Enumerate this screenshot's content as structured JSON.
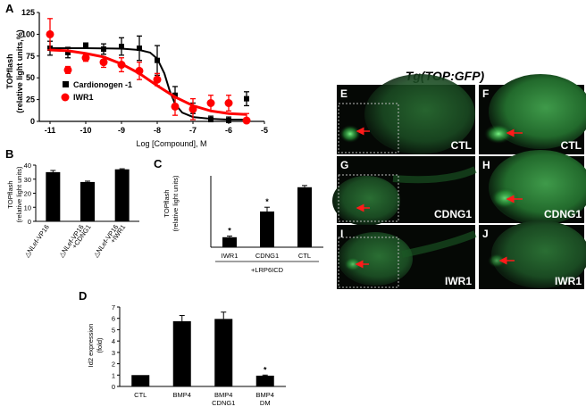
{
  "panels": {
    "A": {
      "letter": "A",
      "chart_data": {
        "type": "line",
        "xlabel": "Log [Compound], M",
        "ylabel_line1": "TOPflash",
        "ylabel_line2": "(relative light units,%)",
        "xlim": [
          -11.3,
          -5
        ],
        "ylim": [
          0,
          125
        ],
        "xticks": [
          "-11",
          "-10",
          "-9",
          "-8",
          "-7",
          "-6",
          "-5"
        ],
        "yticks": [
          "0",
          "25",
          "50",
          "75",
          "100",
          "125"
        ],
        "series": [
          {
            "name": "Cardionogen -1",
            "color": "#000000",
            "marker": "square",
            "points": [
              [
                -11,
                84,
                8
              ],
              [
                -10.5,
                79,
                6
              ],
              [
                -10,
                87,
                3
              ],
              [
                -9.5,
                83,
                6
              ],
              [
                -9,
                86,
                10
              ],
              [
                -8.5,
                84,
                14
              ],
              [
                -8,
                70,
                17
              ],
              [
                -7.5,
                30,
                10
              ],
              [
                -7,
                15,
                6
              ],
              [
                -6.5,
                2,
                4
              ],
              [
                -6,
                1,
                4
              ],
              [
                -5.5,
                26,
                8
              ]
            ],
            "curve": [
              [
                -11,
                84
              ],
              [
                -10,
                84
              ],
              [
                -9,
                83.5
              ],
              [
                -8.5,
                82
              ],
              [
                -8.2,
                79
              ],
              [
                -8,
                72
              ],
              [
                -7.8,
                55
              ],
              [
                -7.65,
                35
              ],
              [
                -7.5,
                20
              ],
              [
                -7.3,
                10
              ],
              [
                -7,
                5
              ],
              [
                -6.5,
                3
              ],
              [
                -6,
                2
              ],
              [
                -5.5,
                2
              ]
            ]
          },
          {
            "name": "IWR1",
            "color": "#ff0000",
            "marker": "circle",
            "points": [
              [
                -11,
                100,
                18
              ],
              [
                -10.5,
                59,
                4
              ],
              [
                -10,
                73,
                4
              ],
              [
                -9.5,
                68,
                6
              ],
              [
                -9,
                65,
                8
              ],
              [
                -8.5,
                58,
                10
              ],
              [
                -8,
                48,
                7
              ],
              [
                -7.5,
                17,
                10
              ],
              [
                -7,
                14,
                12
              ],
              [
                -6.5,
                21,
                9
              ],
              [
                -6,
                21,
                9
              ],
              [
                -5.5,
                1,
                8
              ]
            ],
            "curve": [
              [
                -11,
                82
              ],
              [
                -10.5,
                81
              ],
              [
                -10,
                78
              ],
              [
                -9.5,
                74
              ],
              [
                -9,
                66
              ],
              [
                -8.5,
                55
              ],
              [
                -8,
                41
              ],
              [
                -7.5,
                28
              ],
              [
                -7,
                18
              ],
              [
                -6.5,
                12
              ],
              [
                -6,
                9
              ],
              [
                -5.5,
                8
              ]
            ]
          }
        ]
      }
    },
    "B": {
      "letter": "B",
      "chart_data": {
        "type": "bar",
        "ylabel_line1": "TOPflash",
        "ylabel_line2": "(relative light units)",
        "ylim": [
          0,
          40
        ],
        "yticks": [
          "0",
          "10",
          "20",
          "30",
          "40"
        ],
        "categories": [
          [
            "△NLef-VP16"
          ],
          [
            "△NLef-VP16",
            "+CDNG1"
          ],
          [
            "△NLef-VP16",
            "+IWR1"
          ]
        ],
        "values": [
          35,
          28,
          37
        ],
        "errors": [
          1.2,
          0.6,
          0.4
        ]
      }
    },
    "C": {
      "letter": "C",
      "chart_data": {
        "type": "bar",
        "ylabel_line1": "TOPflash",
        "ylabel_line2": "(relative light units)",
        "ylim": [
          0,
          250
        ],
        "categories": [
          "IWR1",
          "CDNG1",
          "CTL"
        ],
        "values": [
          35,
          125,
          210
        ],
        "errors": [
          4,
          15,
          6
        ],
        "significance": [
          "*",
          "*",
          ""
        ],
        "group_label": "+LRP6ICD"
      }
    },
    "D": {
      "letter": "D",
      "chart_data": {
        "type": "bar",
        "ylabel_line1": "Id2 expression",
        "ylabel_line2": "(fold)",
        "ylim": [
          0,
          7
        ],
        "yticks": [
          "0",
          "1",
          "2",
          "3",
          "4",
          "5",
          "6",
          "7"
        ],
        "categories": [
          [
            "CTL"
          ],
          [
            "BMP4"
          ],
          [
            "BMP4",
            "CDNG1"
          ],
          [
            "BMP4",
            "DM"
          ]
        ],
        "values": [
          1.0,
          5.75,
          5.95,
          0.95
        ],
        "errors": [
          0,
          0.5,
          0.6,
          0.05
        ],
        "significance": [
          "",
          "",
          "",
          "*"
        ]
      }
    },
    "fish": {
      "title": "Tg(TOP:GFP)",
      "panels": [
        {
          "letter": "E",
          "label": "CTL"
        },
        {
          "letter": "F",
          "label": "CTL"
        },
        {
          "letter": "G",
          "label": "CDNG1"
        },
        {
          "letter": "H",
          "label": "CDNG1"
        },
        {
          "letter": "I",
          "label": "IWR1"
        },
        {
          "letter": "J",
          "label": "IWR1"
        }
      ]
    }
  },
  "colors": {
    "black": "#000000",
    "red": "#ff0000",
    "fish_background": "#050805",
    "gfp": "#3fbf50",
    "arrow": "#ff1a1a"
  }
}
